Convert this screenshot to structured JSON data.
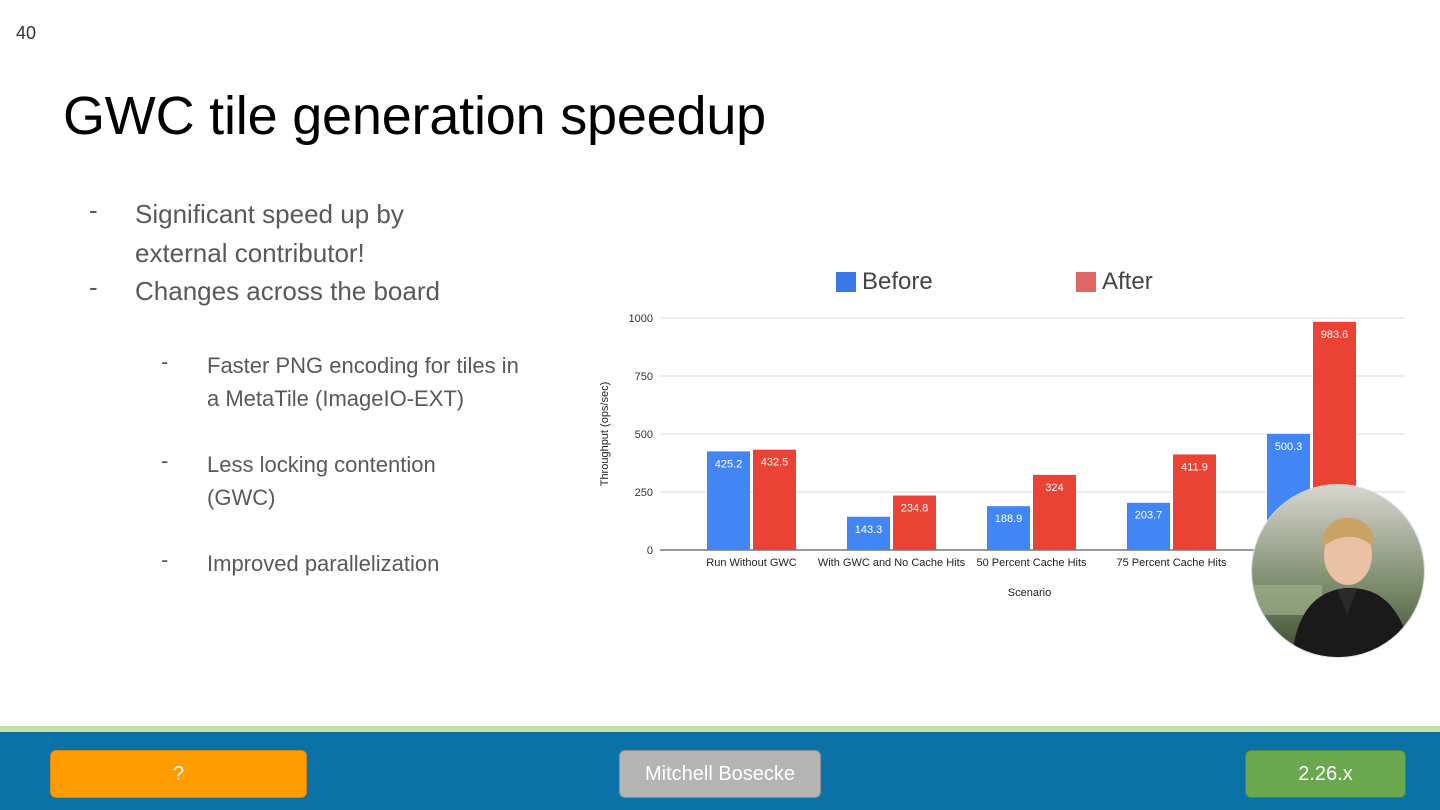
{
  "slide_number": "40",
  "title": "GWC tile generation speedup",
  "bullets": [
    {
      "dash": "-",
      "text": "Significant speed up by external contributor!"
    },
    {
      "dash": "-",
      "text": "Changes across the board"
    }
  ],
  "sub_bullets": [
    {
      "dash": "-",
      "text": "Faster PNG encoding for tiles in a MetaTile (ImageIO-EXT)"
    },
    {
      "dash": "-",
      "text": "Less locking contention (GWC)"
    },
    {
      "dash": "-",
      "text": "Improved parallelization"
    }
  ],
  "chart_data": {
    "type": "bar",
    "categories": [
      "Run Without GWC",
      "With GWC and No Cache Hits",
      "50 Percent Cache Hits",
      "75 Percent Cache Hits",
      ""
    ],
    "series": [
      {
        "name": "Before",
        "color": "#4285f4",
        "values": [
          425.2,
          143.3,
          188.9,
          203.7,
          500.3
        ],
        "labels": [
          "425.2",
          "143.3",
          "188.9",
          "203.7",
          "500.3"
        ]
      },
      {
        "name": "After",
        "color": "#ea4335",
        "values": [
          432.5,
          234.8,
          324,
          411.9,
          983.6
        ],
        "labels": [
          "432.5",
          "234.8",
          "324",
          "411.9",
          "983.6"
        ]
      }
    ],
    "legend_colors": [
      "#3b78e7",
      "#e06666"
    ],
    "xlabel": "Scenario",
    "ylabel": "Throughput (ops/sec)",
    "ylim": [
      0,
      1000
    ],
    "yticks": [
      0,
      250,
      500,
      750,
      1000
    ],
    "ytick_labels": [
      "0",
      "250",
      "500",
      "750",
      "1000"
    ],
    "grid": true,
    "legend_position": "top"
  },
  "footer": {
    "left_button": "?",
    "center_button": "Mitchell Bosecke",
    "right_button": "2.26.x"
  }
}
